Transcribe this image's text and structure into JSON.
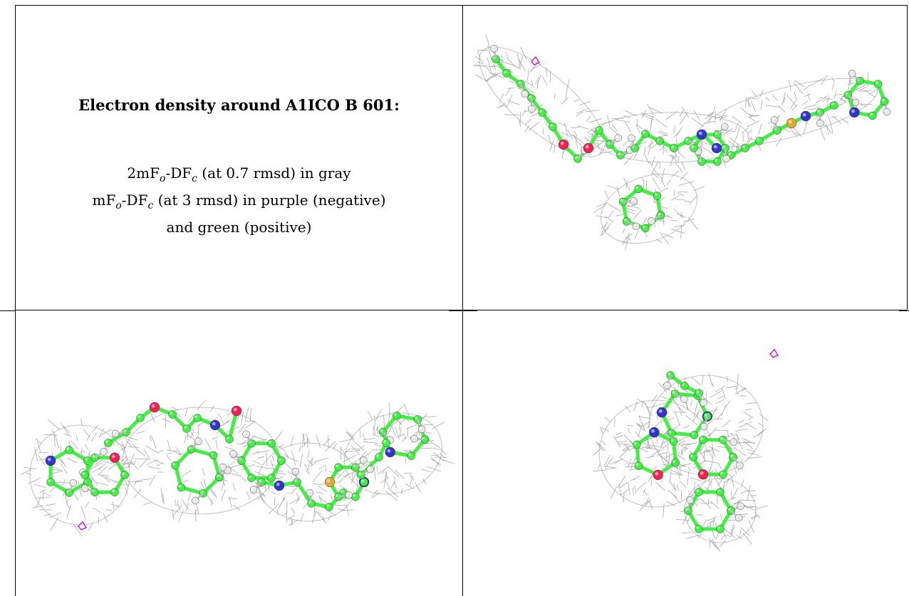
{
  "caption": {
    "title": "Electron density around A1ICO B 601:",
    "line1_prefix": "2mF",
    "line1_sub1": "o",
    "line1_mid": "-DF",
    "line1_sub2": "c",
    "line1_suffix": " (at 0.7 rmsd) in gray",
    "line2_prefix": "mF",
    "line2_sub1": "o",
    "line2_mid": "-DF",
    "line2_sub2": "c",
    "line2_suffix": " (at 3 rmsd) in purple (negative)",
    "line3": "and green (positive)"
  },
  "colors": {
    "carbon": "#44ee44",
    "nitrogen": "#3333cc",
    "oxygen": "#ee2255",
    "sulfur": "#ddaa33",
    "hydrogen": "#e8e8e8",
    "mesh": "#9a9a9a",
    "negative_density": "#cc22cc"
  },
  "icons": [
    "electron-density-view-1",
    "electron-density-view-2",
    "electron-density-view-3"
  ]
}
